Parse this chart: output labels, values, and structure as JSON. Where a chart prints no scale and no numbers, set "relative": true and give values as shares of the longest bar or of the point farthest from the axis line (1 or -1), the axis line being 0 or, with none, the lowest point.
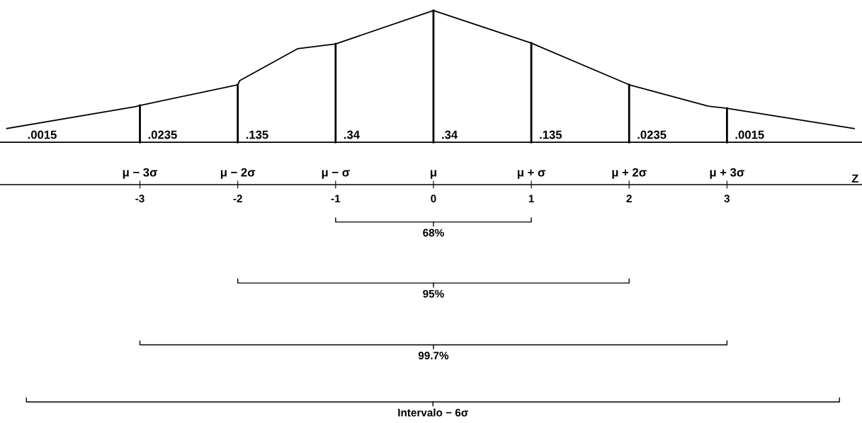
{
  "chart_data": {
    "type": "line",
    "relative": true,
    "x": [
      -4.36,
      -3.05,
      -3.0,
      -2.0,
      -1.98,
      -1.39,
      -1.0,
      0.0,
      1.0,
      2.0,
      2.81,
      3.0,
      4.3
    ],
    "series": [
      {
        "color": "#000000",
        "values": [
          0.105,
          0.27,
          0.28,
          0.437,
          0.468,
          0.71,
          0.747,
          1.0,
          0.753,
          0.437,
          0.274,
          0.258,
          0.105
        ]
      }
    ],
    "xlim": [
      -4.43,
      4.38
    ],
    "xticks": [
      -3,
      -2,
      -1,
      0,
      1,
      2,
      3
    ],
    "xlabel": "Z",
    "x2lim": [
      -4.43,
      4.38
    ],
    "x2ticks": [
      {
        "value": -3,
        "label": "μ − 3σ"
      },
      {
        "value": -2,
        "label": "μ − 2σ"
      },
      {
        "value": -1,
        "label": "μ − σ"
      },
      {
        "value": 0,
        "label": "μ"
      },
      {
        "value": 1,
        "label": "μ + σ"
      },
      {
        "value": 2,
        "label": "μ + 2σ"
      },
      {
        "value": 3,
        "label": "μ + 3σ"
      }
    ],
    "ref_lines": [
      {
        "axis": "x",
        "value": -3
      },
      {
        "axis": "x",
        "value": -2
      },
      {
        "axis": "x",
        "value": -1
      },
      {
        "axis": "x",
        "value": 0
      },
      {
        "axis": "x",
        "value": 1
      },
      {
        "axis": "x",
        "value": 2
      },
      {
        "axis": "x",
        "value": 3
      }
    ],
    "annotations": [
      ".0015",
      ".0235",
      ".135",
      ".34",
      ".34",
      ".135",
      ".0235",
      ".0015",
      "68%",
      "95%",
      "99.7%",
      "Intervalo − 6σ"
    ],
    "grid": false,
    "legend": false,
    "marker": "none",
    "line_style": "solid"
  }
}
